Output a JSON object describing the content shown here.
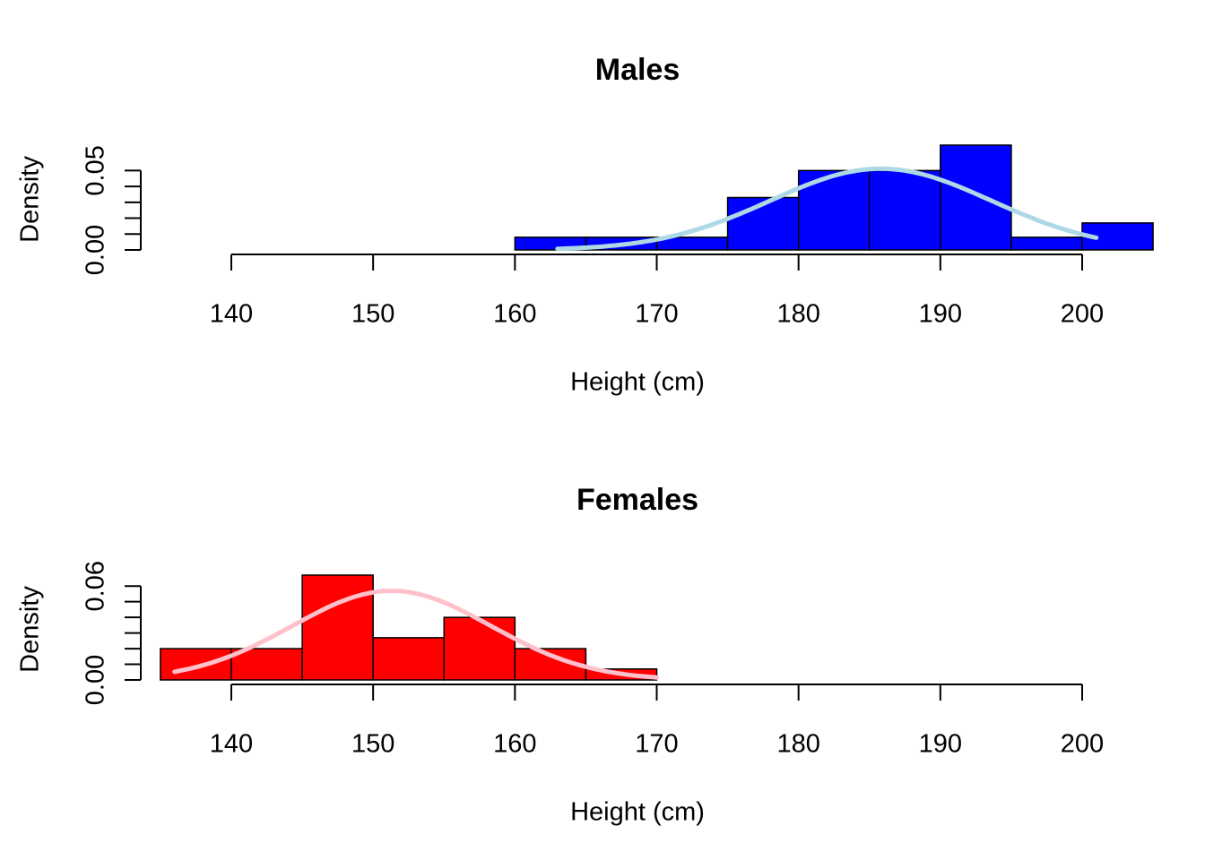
{
  "chart_data": [
    {
      "type": "bar",
      "title": "Males",
      "xlabel": "Height (cm)",
      "ylabel": "Density",
      "xlim": [
        135,
        205
      ],
      "x_ticks": [
        "140",
        "150",
        "160",
        "170",
        "180",
        "190",
        "200"
      ],
      "y_ticks": [
        "0.00",
        "0.05"
      ],
      "ylim": [
        0,
        0.061
      ],
      "bar_color": "#0000ff",
      "curve_color": "#add8e6",
      "bins": [
        {
          "from": 160,
          "to": 165,
          "density": 0.008
        },
        {
          "from": 165,
          "to": 170,
          "density": 0.008
        },
        {
          "from": 170,
          "to": 175,
          "density": 0.008
        },
        {
          "from": 175,
          "to": 180,
          "density": 0.033
        },
        {
          "from": 180,
          "to": 185,
          "density": 0.05
        },
        {
          "from": 185,
          "to": 190,
          "density": 0.05
        },
        {
          "from": 190,
          "to": 195,
          "density": 0.066
        },
        {
          "from": 195,
          "to": 200,
          "density": 0.008
        },
        {
          "from": 200,
          "to": 205,
          "density": 0.017
        }
      ],
      "density_curve": {
        "from": 163,
        "to": 201,
        "mean": 185.8,
        "sd": 7.8
      }
    },
    {
      "type": "bar",
      "title": "Females",
      "xlabel": "Height (cm)",
      "ylabel": "Density",
      "xlim": [
        135,
        205
      ],
      "x_ticks": [
        "140",
        "150",
        "160",
        "170",
        "180",
        "190",
        "200"
      ],
      "y_ticks": [
        "0.00",
        "0.06"
      ],
      "ylim": [
        0,
        0.068
      ],
      "bar_color": "#ff0000",
      "curve_color": "#ffc0cb",
      "bins": [
        {
          "from": 135,
          "to": 140,
          "density": 0.02
        },
        {
          "from": 140,
          "to": 145,
          "density": 0.02
        },
        {
          "from": 145,
          "to": 150,
          "density": 0.067
        },
        {
          "from": 150,
          "to": 155,
          "density": 0.027
        },
        {
          "from": 155,
          "to": 160,
          "density": 0.04
        },
        {
          "from": 160,
          "to": 165,
          "density": 0.02
        },
        {
          "from": 165,
          "to": 170,
          "density": 0.007
        }
      ],
      "density_curve": {
        "from": 136,
        "to": 170,
        "mean": 151.3,
        "sd": 7.0
      }
    }
  ]
}
